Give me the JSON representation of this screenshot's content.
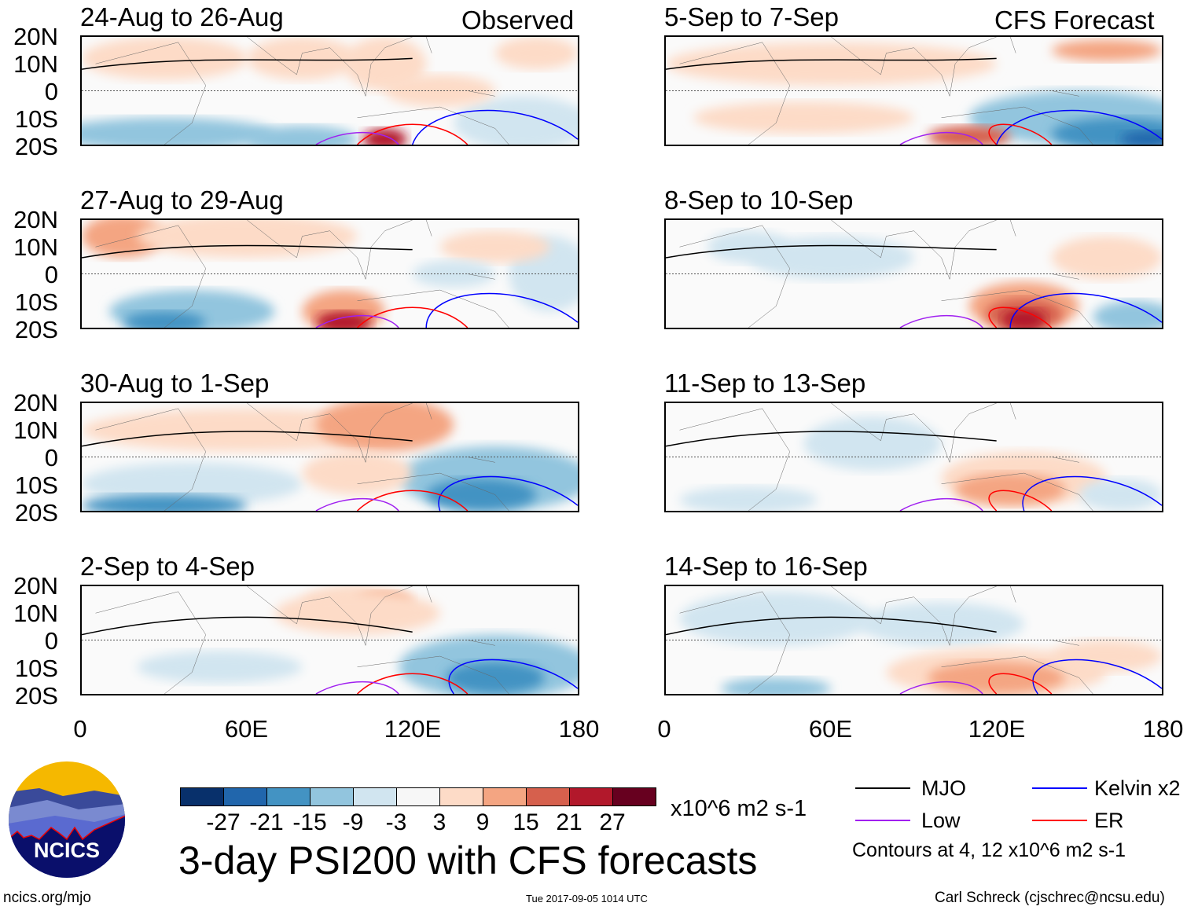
{
  "header": {
    "observed_label": "Observed",
    "forecast_label": "CFS Forecast"
  },
  "panels": {
    "observed": [
      "24-Aug to 26-Aug",
      "27-Aug to 29-Aug",
      "30-Aug to 1-Sep",
      "2-Sep to 4-Sep"
    ],
    "forecast": [
      "5-Sep to 7-Sep",
      "8-Sep to 10-Sep",
      "11-Sep to 13-Sep",
      "14-Sep to 16-Sep"
    ]
  },
  "axes": {
    "lat_labels": [
      "20N",
      "10N",
      "0",
      "10S",
      "20S"
    ],
    "lon_labels": [
      "0",
      "60E",
      "120E",
      "180"
    ]
  },
  "colorbar": {
    "colors": [
      "#08306b",
      "#2166ac",
      "#4393c3",
      "#92c5de",
      "#d1e5f0",
      "#f7f7f7",
      "#fddbc7",
      "#f4a582",
      "#d6604d",
      "#b2182b",
      "#67001f"
    ],
    "ticks": [
      "-27",
      "-21",
      "-15",
      "-9",
      "-3",
      "3",
      "9",
      "15",
      "21",
      "27"
    ],
    "units": "x10^6 m2 s-1"
  },
  "title": "3-day PSI200 with CFS forecasts",
  "legend": {
    "items": [
      {
        "label": "MJO",
        "color": "#000000"
      },
      {
        "label": "Kelvin x2",
        "color": "#0000ff"
      },
      {
        "label": "Low",
        "color": "#a020f0"
      },
      {
        "label": "ER",
        "color": "#ff0000"
      }
    ],
    "note": "Contours at 4, 12 x10^6 m2 s-1"
  },
  "logo": {
    "text": "NCICS"
  },
  "footer": {
    "url": "ncics.org/mjo",
    "timestamp": "Tue 2017-09-05 1014 UTC",
    "author": "Carl Schreck (cjschrec@ncsu.edu)"
  }
}
